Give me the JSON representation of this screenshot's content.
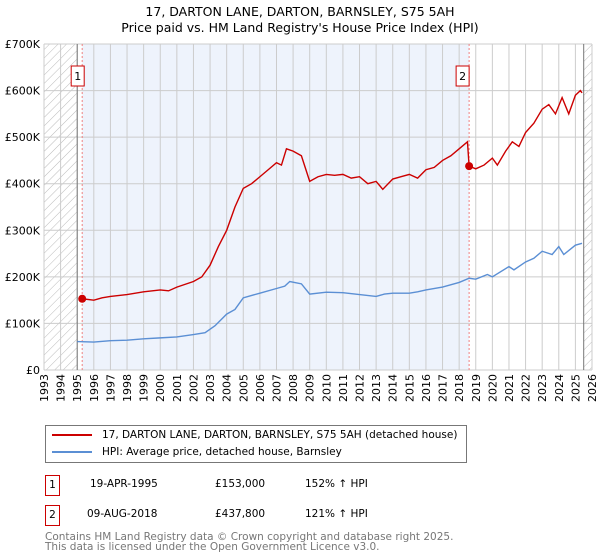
{
  "chart_data": {
    "type": "line",
    "title": "17, DARTON LANE, DARTON, BARNSLEY, S75 5AH",
    "subtitle": "Price paid vs. HM Land Registry's House Price Index (HPI)",
    "xlim": [
      1993,
      2026
    ],
    "ylim": [
      0,
      700000
    ],
    "x_ticks": [
      "1993",
      "1994",
      "1995",
      "1996",
      "1997",
      "1998",
      "1999",
      "2000",
      "2001",
      "2002",
      "2003",
      "2004",
      "2005",
      "2006",
      "2007",
      "2008",
      "2009",
      "2010",
      "2011",
      "2012",
      "2013",
      "2014",
      "2015",
      "2016",
      "2017",
      "2018",
      "2019",
      "2020",
      "2021",
      "2022",
      "2023",
      "2024",
      "2025",
      "2026"
    ],
    "y_ticks": [
      {
        "v": 0,
        "label": "£0"
      },
      {
        "v": 100000,
        "label": "£100K"
      },
      {
        "v": 200000,
        "label": "£200K"
      },
      {
        "v": 300000,
        "label": "£300K"
      },
      {
        "v": 400000,
        "label": "£400K"
      },
      {
        "v": 500000,
        "label": "£500K"
      },
      {
        "v": 600000,
        "label": "£600K"
      },
      {
        "v": 700000,
        "label": "£700K"
      }
    ],
    "grid": true,
    "series": [
      {
        "name": "17, DARTON LANE, DARTON, BARNSLEY, S75 5AH (detached house)",
        "color": "#cc0000",
        "x": [
          1995.3,
          1996,
          1996.5,
          1997,
          1998,
          1999,
          2000,
          2000.5,
          2001,
          2002,
          2002.5,
          2003,
          2003.5,
          2004,
          2004.5,
          2005,
          2005.5,
          2006,
          2006.5,
          2007,
          2007.3,
          2007.6,
          2008,
          2008.5,
          2009,
          2009.5,
          2010,
          2010.5,
          2011,
          2011.5,
          2012,
          2012.5,
          2013,
          2013.4,
          2014,
          2014.5,
          2015,
          2015.5,
          2016,
          2016.5,
          2017,
          2017.5,
          2018,
          2018.5,
          2018.6,
          2019,
          2019.5,
          2020,
          2020.3,
          2020.8,
          2021.2,
          2021.6,
          2022,
          2022.5,
          2023,
          2023.4,
          2023.8,
          2024.2,
          2024.6,
          2025,
          2025.3,
          2025.4
        ],
        "y": [
          153000,
          150000,
          155000,
          158000,
          162000,
          168000,
          172000,
          170000,
          178000,
          190000,
          200000,
          225000,
          265000,
          300000,
          350000,
          390000,
          400000,
          415000,
          430000,
          445000,
          440000,
          475000,
          470000,
          460000,
          405000,
          415000,
          420000,
          418000,
          420000,
          412000,
          415000,
          400000,
          405000,
          388000,
          410000,
          415000,
          420000,
          412000,
          430000,
          435000,
          450000,
          460000,
          475000,
          490000,
          437800,
          432000,
          440000,
          455000,
          440000,
          470000,
          490000,
          480000,
          510000,
          530000,
          560000,
          570000,
          550000,
          585000,
          550000,
          590000,
          600000,
          595000
        ]
      },
      {
        "name": "HPI: Average price, detached house, Barnsley",
        "color": "#5b8fd4",
        "x": [
          1995.0,
          1996,
          1997,
          1998,
          1999,
          2000,
          2001,
          2002,
          2002.7,
          2003.3,
          2004,
          2004.5,
          2005,
          2006,
          2007,
          2007.5,
          2007.8,
          2008.5,
          2009,
          2010,
          2011,
          2012,
          2013,
          2013.5,
          2014,
          2015,
          2015.5,
          2016,
          2017,
          2018,
          2018.6,
          2019,
          2019.7,
          2020,
          2021,
          2021.3,
          2022,
          2022.5,
          2023,
          2023.6,
          2024,
          2024.3,
          2025,
          2025.4
        ],
        "y": [
          61000,
          60000,
          63000,
          64000,
          67000,
          69000,
          71000,
          76000,
          80000,
          95000,
          120000,
          130000,
          155000,
          165000,
          175000,
          180000,
          190000,
          185000,
          163000,
          167000,
          166000,
          162000,
          158000,
          163000,
          165000,
          165000,
          168000,
          172000,
          178000,
          188000,
          197000,
          195000,
          205000,
          200000,
          222000,
          215000,
          232000,
          240000,
          255000,
          248000,
          265000,
          248000,
          268000,
          272000
        ]
      }
    ],
    "annotations": [
      {
        "label": "1",
        "x": 1995.3,
        "y": 153000
      },
      {
        "label": "2",
        "x": 2018.6,
        "y": 437800
      }
    ]
  },
  "legend": {
    "red_label": "17, DARTON LANE, DARTON, BARNSLEY, S75 5AH (detached house)",
    "blue_label": "HPI: Average price, detached house, Barnsley"
  },
  "sales": [
    {
      "num": "1",
      "date": "19-APR-1995",
      "price": "£153,000",
      "hpi": "152% ↑ HPI"
    },
    {
      "num": "2",
      "date": "09-AUG-2018",
      "price": "£437,800",
      "hpi": "121% ↑ HPI"
    }
  ],
  "footer": {
    "line1": "Contains HM Land Registry data © Crown copyright and database right 2025.",
    "line2": "This data is licensed under the Open Government Licence v3.0."
  }
}
